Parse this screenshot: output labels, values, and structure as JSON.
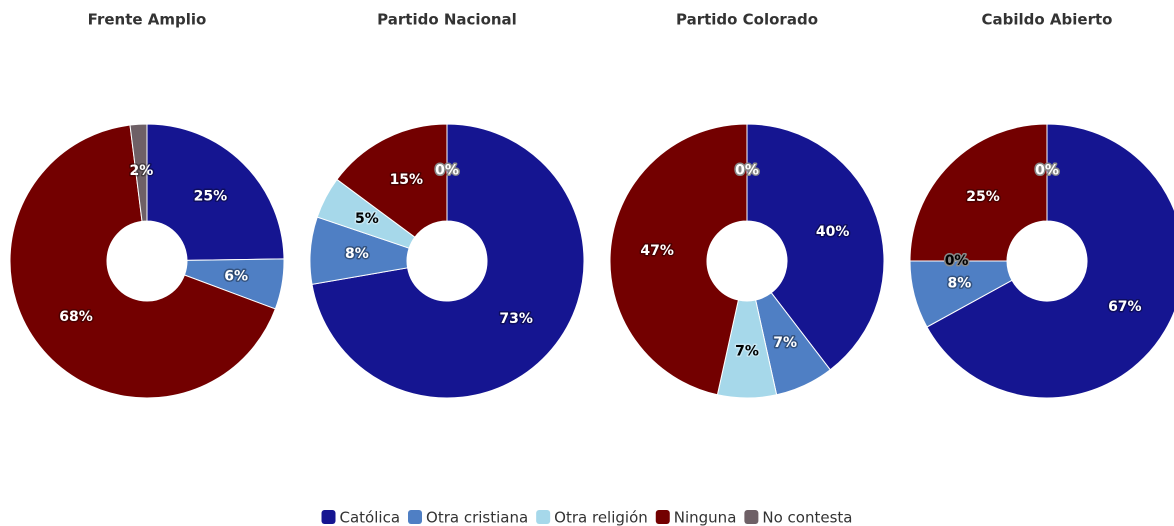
{
  "chart_data": [
    {
      "type": "pie",
      "title": "Frente Amplio",
      "categories": [
        "Católica",
        "Otra cristiana",
        "Otra religión",
        "Ninguna",
        "No contesta"
      ],
      "colors": [
        "#151591",
        "#4f7fc4",
        "#a6d8ea",
        "#730000",
        "#6e6066"
      ],
      "values": [
        25,
        6,
        null,
        68,
        2
      ],
      "value_labels": [
        "25%",
        "6%",
        null,
        "68%",
        "2%"
      ]
    },
    {
      "type": "pie",
      "title": "Partido Nacional",
      "categories": [
        "Católica",
        "Otra cristiana",
        "Otra religión",
        "Ninguna",
        "No contesta"
      ],
      "colors": [
        "#151591",
        "#4f7fc4",
        "#a6d8ea",
        "#730000",
        "#6e6066"
      ],
      "values": [
        73,
        8,
        5,
        15,
        0
      ],
      "value_labels": [
        "73%",
        "8%",
        "5%",
        "15%",
        "0%"
      ]
    },
    {
      "type": "pie",
      "title": "Partido Colorado",
      "categories": [
        "Católica",
        "Otra cristiana",
        "Otra religión",
        "Ninguna",
        "No contesta"
      ],
      "colors": [
        "#151591",
        "#4f7fc4",
        "#a6d8ea",
        "#730000",
        "#6e6066"
      ],
      "values": [
        40,
        7,
        7,
        47,
        0
      ],
      "value_labels": [
        "40%",
        "7%",
        "7%",
        "47%",
        "0%"
      ]
    },
    {
      "type": "pie",
      "title": "Cabildo Abierto",
      "categories": [
        "Católica",
        "Otra cristiana",
        "Otra religión",
        "Ninguna",
        "No contesta"
      ],
      "colors": [
        "#151591",
        "#4f7fc4",
        "#a6d8ea",
        "#730000",
        "#6e6066"
      ],
      "values": [
        67,
        8,
        0,
        25,
        0
      ],
      "value_labels": [
        "67%",
        "8%",
        "0%",
        "25%",
        "0%"
      ]
    }
  ]
}
